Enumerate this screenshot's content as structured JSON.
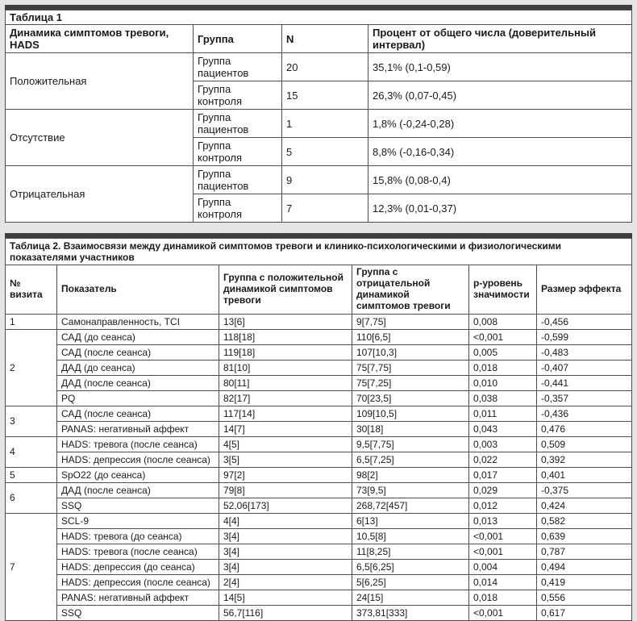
{
  "colors": {
    "page_background": "#e4e4e4",
    "table_top_bar": "#3f3f3f",
    "grid_border": "#4f4f4f",
    "cell_background": "#ffffff",
    "text": "#1a1a1a"
  },
  "table1": {
    "title": "Таблица 1",
    "headers": [
      "Динамика симптомов тревоги, HADS",
      "Группа",
      "N",
      "Процент от общего числа (доверительный интервал)"
    ],
    "groups": [
      {
        "label": "Положительная",
        "rows": [
          {
            "group": "Группа пациентов",
            "n": "20",
            "percent": "35,1% (0,1-0,59)"
          },
          {
            "group": "Группа контроля",
            "n": "15",
            "percent": "26,3% (0,07-0,45)"
          }
        ]
      },
      {
        "label": "Отсутствие",
        "rows": [
          {
            "group": "Группа пациентов",
            "n": "1",
            "percent": "1,8% (-0,24-0,28)"
          },
          {
            "group": "Группа контроля",
            "n": "5",
            "percent": "8,8% (-0,16-0,34)"
          }
        ]
      },
      {
        "label": "Отрицательная",
        "rows": [
          {
            "group": "Группа пациентов",
            "n": "9",
            "percent": "15,8% (0,08-0,4)"
          },
          {
            "group": "Группа контроля",
            "n": "7",
            "percent": "12,3% (0,01-0,37)"
          }
        ]
      }
    ]
  },
  "table2": {
    "title": "Таблица 2. Взаимосвязи между динамикой симптомов тревоги и клинико-психологическими и физиологическими показателями участников",
    "headers": [
      "№ визита",
      "Показатель",
      "Группа с положительной динамикой симптомов тревоги",
      "Группа с отрицательной динамикой симптомов тревоги",
      "p-уровень значимости",
      "Размер эффекта"
    ],
    "groups": [
      {
        "visit": "1",
        "rows": [
          {
            "indicator": "Самонаправленность, TCI",
            "positive": "13[6]",
            "negative": "9[7,75]",
            "p": "0,008",
            "effect": "-0,456"
          }
        ]
      },
      {
        "visit": "2",
        "rows": [
          {
            "indicator": "САД (до сеанса)",
            "positive": "118[18]",
            "negative": "110[6,5]",
            "p": "<0,001",
            "effect": "-0,599"
          },
          {
            "indicator": "САД (после сеанса)",
            "positive": "119[18]",
            "negative": "107[10,3]",
            "p": "0,005",
            "effect": "-0,483"
          },
          {
            "indicator": "ДАД (до сеанса)",
            "positive": "81[10]",
            "negative": "75[7,75]",
            "p": "0,018",
            "effect": "-0,407"
          },
          {
            "indicator": "ДАД (после сеанса)",
            "positive": "80[11]",
            "negative": "75[7,25]",
            "p": "0,010",
            "effect": "-0,441"
          },
          {
            "indicator": "PQ",
            "positive": "82[17]",
            "negative": "70[23,5]",
            "p": "0,038",
            "effect": "-0,357"
          }
        ]
      },
      {
        "visit": "3",
        "rows": [
          {
            "indicator": "САД (после сеанса)",
            "positive": "117[14]",
            "negative": "109[10,5]",
            "p": "0,011",
            "effect": "-0,436"
          },
          {
            "indicator": "PANAS: негативный аффект",
            "positive": "14[7]",
            "negative": "30[18]",
            "p": "0,043",
            "effect": "0,476"
          }
        ]
      },
      {
        "visit": "4",
        "rows": [
          {
            "indicator": "HADS: тревога (после сеанса)",
            "positive": "4[5]",
            "negative": "9,5[7,75]",
            "p": "0,003",
            "effect": "0,509"
          },
          {
            "indicator": "HADS: депрессия (после сеанса)",
            "positive": "3[5]",
            "negative": "6,5[7,25]",
            "p": "0,022",
            "effect": "0,392"
          }
        ]
      },
      {
        "visit": "5",
        "rows": [
          {
            "indicator": "SpO22 (до сеанса)",
            "positive": "97[2]",
            "negative": "98[2]",
            "p": "0,017",
            "effect": "0,401"
          }
        ]
      },
      {
        "visit": "6",
        "rows": [
          {
            "indicator": "ДАД (после сеанса)",
            "positive": "79[8]",
            "negative": "73[9,5]",
            "p": "0,029",
            "effect": "-0,375"
          },
          {
            "indicator": "SSQ",
            "positive": "52,06[173]",
            "negative": "268,72[457]",
            "p": "0,012",
            "effect": "0,424"
          }
        ]
      },
      {
        "visit": "7",
        "rows": [
          {
            "indicator": "SCL-9",
            "positive": "4[4]",
            "negative": "6[13]",
            "p": "0,013",
            "effect": "0,582"
          },
          {
            "indicator": "HADS: тревога (до сеанса)",
            "positive": "3[4]",
            "negative": "10,5[8]",
            "p": "<0,001",
            "effect": "0,639"
          },
          {
            "indicator": "HADS: тревога (после сеанса)",
            "positive": "3[4]",
            "negative": "11[8,25]",
            "p": "<0,001",
            "effect": "0,787"
          },
          {
            "indicator": "HADS: депрессия (до сеанса)",
            "positive": "3[4]",
            "negative": "6,5[6,25]",
            "p": "0,004",
            "effect": "0,494"
          },
          {
            "indicator": "HADS: депрессия (после сеанса)",
            "positive": "2[4]",
            "negative": "5[6,25]",
            "p": "0,014",
            "effect": "0,419"
          },
          {
            "indicator": "PANAS: негативный аффект",
            "positive": "14[5]",
            "negative": "24[15]",
            "p": "0,018",
            "effect": "0,556"
          },
          {
            "indicator": "SSQ",
            "positive": "56,7[116]",
            "negative": "373,81[333]",
            "p": "<0,001",
            "effect": "0,617"
          }
        ]
      }
    ]
  }
}
